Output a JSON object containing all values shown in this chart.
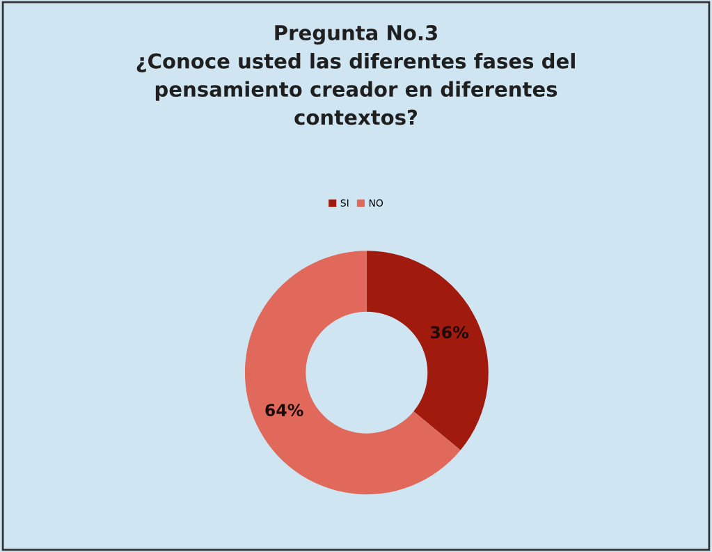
{
  "chart_data": {
    "type": "donut",
    "title": "Pregunta No.3\n¿Conoce usted las diferentes fases del\npensamiento creador en diferentes\ncontextos?",
    "categories": [
      "SI",
      "NO"
    ],
    "values": [
      36,
      64
    ],
    "colors": [
      "#a11a0e",
      "#e0695b"
    ],
    "value_labels": [
      "36%",
      "64%"
    ],
    "legend": "top"
  }
}
